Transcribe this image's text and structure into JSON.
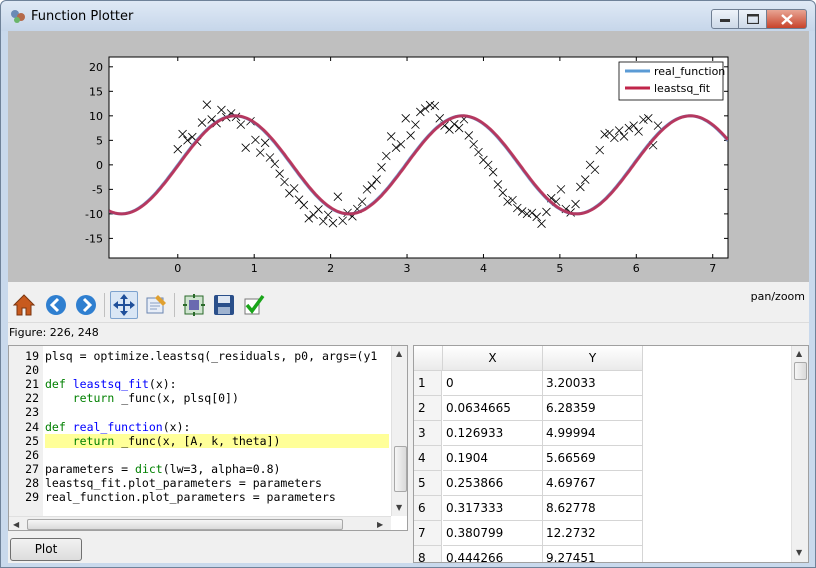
{
  "window": {
    "title": "Function Plotter"
  },
  "figure": {
    "status": "Figure: 226, 248",
    "mode": "pan/zoom",
    "legend": [
      "real_function",
      "leastsq_fit"
    ],
    "colors": {
      "real_function": "#5b9bd5",
      "leastsq_fit": "#c0254a"
    }
  },
  "toolbar": {
    "buttons": [
      "home-icon",
      "back-arrow-icon",
      "forward-arrow-icon",
      "pan-move-icon",
      "edit-axes-icon",
      "configure-subplots-icon",
      "save-disk-icon",
      "apply-checkmark-icon"
    ]
  },
  "editor": {
    "lines": [
      {
        "n": "19",
        "code": "plsq = optimize.leastsq(_residuals, p0, args=(y1"
      },
      {
        "n": "20",
        "code": ""
      },
      {
        "n": "21",
        "code": "def leastsq_fit(x):"
      },
      {
        "n": "22",
        "code": "    return _func(x, plsq[0])"
      },
      {
        "n": "23",
        "code": ""
      },
      {
        "n": "24",
        "code": "def real_function(x):"
      },
      {
        "n": "25",
        "code": "    return _func(x, [A, k, theta])"
      },
      {
        "n": "26",
        "code": ""
      },
      {
        "n": "27",
        "code": "parameters = dict(lw=3, alpha=0.8)"
      },
      {
        "n": "28",
        "code": "leastsq_fit.plot_parameters = parameters"
      },
      {
        "n": "29",
        "code": "real_function.plot_parameters = parameters"
      }
    ]
  },
  "table": {
    "columns": [
      "X",
      "Y"
    ],
    "rows": [
      {
        "i": "1",
        "x": "0",
        "y": "3.20033"
      },
      {
        "i": "2",
        "x": "0.0634665",
        "y": "6.28359"
      },
      {
        "i": "3",
        "x": "0.126933",
        "y": "4.99994"
      },
      {
        "i": "4",
        "x": "0.1904",
        "y": "5.66569"
      },
      {
        "i": "5",
        "x": "0.253866",
        "y": "4.69767"
      },
      {
        "i": "6",
        "x": "0.317333",
        "y": "8.62778"
      },
      {
        "i": "7",
        "x": "0.380799",
        "y": "12.2732"
      },
      {
        "i": "8",
        "x": "0.444266",
        "y": "9.27451"
      }
    ]
  },
  "plot_button": {
    "label": "Plot"
  },
  "chart_data": {
    "type": "line",
    "xlim": [
      -0.9,
      7.2
    ],
    "ylim": [
      -19,
      22
    ],
    "xticks": [
      0,
      1,
      2,
      3,
      4,
      5,
      6,
      7
    ],
    "yticks": [
      -15,
      -10,
      -5,
      0,
      5,
      10,
      15,
      20
    ],
    "legend_position": "top-right",
    "grid": false,
    "series": [
      {
        "name": "real_function",
        "amplitude": 10,
        "k": 2,
        "theta": 0.34
      },
      {
        "name": "leastsq_fit",
        "amplitude": 10,
        "k": 2.01,
        "theta": 0.3
      }
    ],
    "scatter": {
      "marker": "x",
      "x": [
        0,
        0.063,
        0.127,
        0.19,
        0.254,
        0.317,
        0.381,
        0.444,
        0.508,
        0.571,
        0.635,
        0.698,
        0.762,
        0.825,
        0.889,
        0.952,
        1.016,
        1.079,
        1.143,
        1.206,
        1.27,
        1.333,
        1.397,
        1.46,
        1.523,
        1.587,
        1.65,
        1.714,
        1.777,
        1.841,
        1.904,
        1.968,
        2.031,
        2.095,
        2.158,
        2.222,
        2.285,
        2.349,
        2.412,
        2.476,
        2.539,
        2.602,
        2.666,
        2.729,
        2.793,
        2.856,
        2.92,
        2.983,
        3.047,
        3.11,
        3.174,
        3.237,
        3.301,
        3.364,
        3.428,
        3.491,
        3.555,
        3.618,
        3.681,
        3.745,
        3.808,
        3.872,
        3.935,
        3.999,
        4.062,
        4.126,
        4.189,
        4.253,
        4.316,
        4.38,
        4.443,
        4.507,
        4.57,
        4.634,
        4.697,
        4.76,
        4.824,
        4.887,
        4.951,
        5.014,
        5.078,
        5.141,
        5.205,
        5.268,
        5.332,
        5.395,
        5.459,
        5.522,
        5.586,
        5.649,
        5.713,
        5.776,
        5.839,
        5.903,
        5.966,
        6.03,
        6.093,
        6.157,
        6.22,
        6.284
      ],
      "y": [
        3.2,
        6.28,
        5.0,
        5.67,
        4.7,
        8.63,
        12.27,
        9.27,
        8.5,
        11.2,
        9.7,
        10.5,
        9.8,
        8.2,
        3.5,
        8.9,
        5.1,
        2.5,
        4.5,
        1.5,
        0.2,
        -1.8,
        -3.5,
        -5.8,
        -4.8,
        -7.1,
        -8.2,
        -10.9,
        -10.2,
        -9.1,
        -11.5,
        -10.2,
        -11.9,
        -6.5,
        -11.4,
        -9.8,
        -10.5,
        -9.0,
        -7.5,
        -5.0,
        -4.2,
        -3.0,
        -0.5,
        1.8,
        5.8,
        3.5,
        4.2,
        9.5,
        6.0,
        8.2,
        10.8,
        11.5,
        12.2,
        12.0,
        9.5,
        8.0,
        7.2,
        8.3,
        7.5,
        9.3,
        6.0,
        4.2,
        2.6,
        1.0,
        0.0,
        -1.5,
        -4.0,
        -5.7,
        -7.5,
        -7.2,
        -8.8,
        -9.5,
        -10.0,
        -9.8,
        -10.6,
        -12.0,
        -9.6,
        -6.8,
        -7.5,
        -5.0,
        -9.0,
        -9.7,
        -8.0,
        -4.5,
        -3.0,
        0.0,
        -1.0,
        3.0,
        6.2,
        6.5,
        5.5,
        7.0,
        5.8,
        7.5,
        8.0,
        6.8,
        9.2,
        9.5,
        4.0,
        8.0
      ]
    }
  }
}
